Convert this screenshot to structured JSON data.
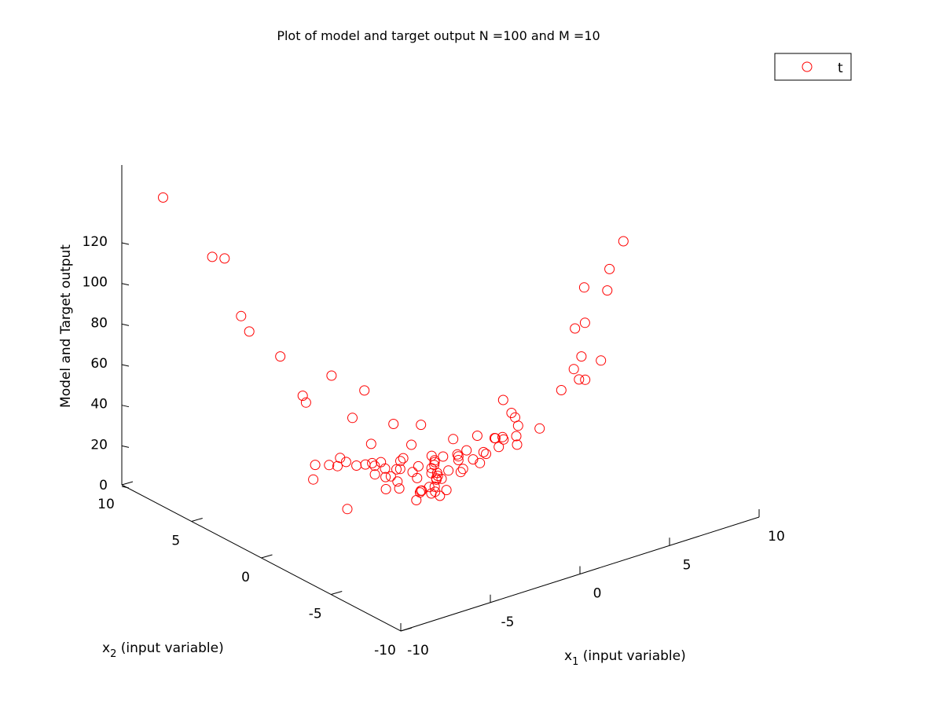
{
  "chart_data": {
    "type": "scatter",
    "title": "Plot of model and target output N =100 and M =10",
    "x1_label": {
      "main": "x",
      "sub": "1",
      "rest": " (input variable)"
    },
    "x2_label": {
      "main": "x",
      "sub": "2",
      "rest": " (input variable)"
    },
    "zlabel": "Model and Target output",
    "x1_ticks": [
      "-10",
      "-5",
      "0",
      "5",
      "10"
    ],
    "x2_ticks": [
      "-10",
      "-5",
      "0",
      "5",
      "10"
    ],
    "z_ticks": [
      "0",
      "20",
      "40",
      "60",
      "80",
      "100",
      "120"
    ],
    "x1_range": [
      -10,
      10
    ],
    "x2_range": [
      -10,
      10
    ],
    "z_range": [
      0,
      130
    ],
    "legend": {
      "entries": [
        "t"
      ],
      "position": "top-right",
      "marker": "circle"
    },
    "marker_color": "#ff0000",
    "grid": false,
    "series": [
      {
        "name": "t",
        "points": [
          [
            -8.4,
            9.1,
            140.3
          ],
          [
            -6.6,
            7.0,
            112.8
          ],
          [
            -6.9,
            7.5,
            112.6
          ],
          [
            -6.7,
            5.1,
            83.9
          ],
          [
            -6.3,
            6.2,
            86.4
          ],
          [
            -5.2,
            4.8,
            68.5
          ],
          [
            -5.9,
            2.3,
            60.1
          ],
          [
            -3.2,
            3.7,
            57.4
          ],
          [
            -3.4,
            -1.0,
            51.1
          ],
          [
            -4.7,
            3.6,
            48.7
          ],
          [
            -2.3,
            2.5,
            51.9
          ],
          [
            -3.9,
            1.3,
            47.2
          ],
          [
            -2.1,
            -1.3,
            48.1
          ],
          [
            -3.4,
            0.6,
            35.5
          ],
          [
            -4.3,
            0.5,
            27.7
          ],
          [
            -5.7,
            1.8,
            20.1
          ],
          [
            -5.2,
            2.3,
            24.1
          ],
          [
            -4.2,
            1.8,
            26.5
          ],
          [
            -5.9,
            -0.9,
            15.8
          ],
          [
            -2.6,
            -2.7,
            30.7
          ],
          [
            0.4,
            -0.4,
            30.8
          ],
          [
            0.1,
            -2.7,
            28.1
          ],
          [
            -1.0,
            0.8,
            27.6
          ],
          [
            -2.4,
            2.3,
            16.4
          ],
          [
            -2.8,
            1.1,
            17.0
          ],
          [
            -2.3,
            0.6,
            16.4
          ],
          [
            -3.2,
            -0.2,
            15.5
          ],
          [
            -2.3,
            0.0,
            12.6
          ],
          [
            -1.7,
            0.9,
            11.1
          ],
          [
            -2.6,
            -2.0,
            19.6
          ],
          [
            -1.9,
            -2.4,
            16.5
          ],
          [
            -1.8,
            -1.9,
            18.9
          ],
          [
            -0.6,
            -1.2,
            11.4
          ],
          [
            -1.3,
            -0.2,
            8.6
          ],
          [
            -2.1,
            -1.9,
            19.6
          ],
          [
            -1.6,
            -1.4,
            13.2
          ],
          [
            -1.0,
            -0.9,
            10.6
          ],
          [
            0.3,
            0.8,
            15.4
          ],
          [
            -0.1,
            -0.7,
            17.8
          ],
          [
            -0.3,
            -2.0,
            23.8
          ],
          [
            1.0,
            -1.8,
            27.7
          ],
          [
            1.3,
            -0.2,
            22.0
          ],
          [
            2.4,
            -0.8,
            27.1
          ],
          [
            1.3,
            -1.6,
            25.3
          ],
          [
            1.0,
            1.1,
            15.1
          ],
          [
            1.0,
            0.0,
            19.2
          ],
          [
            -0.4,
            -0.6,
            14.2
          ],
          [
            -0.1,
            0.1,
            13.7
          ],
          [
            0.3,
            0.8,
            16.3
          ],
          [
            -0.6,
            2.1,
            13.8
          ],
          [
            -1.3,
            2.6,
            13.4
          ],
          [
            -1.9,
            1.5,
            11.7
          ],
          [
            -1.1,
            0.0,
            8.1
          ],
          [
            -0.7,
            1.1,
            12.2
          ],
          [
            -1.5,
            -0.2,
            5.3
          ],
          [
            -0.6,
            0.9,
            9.7
          ],
          [
            -0.3,
            -0.2,
            13.9
          ],
          [
            -0.3,
            1.2,
            13.6
          ],
          [
            0.0,
            0.3,
            10.1
          ],
          [
            0.2,
            0.9,
            12.4
          ],
          [
            0.4,
            0.8,
            6.5
          ],
          [
            0.9,
            1.6,
            9.4
          ],
          [
            0.6,
            1.4,
            15.5
          ],
          [
            1.9,
            0.1,
            14.8
          ],
          [
            1.6,
            0.6,
            7.6
          ],
          [
            2.4,
            1.8,
            6.9
          ],
          [
            1.8,
            1.1,
            13.9
          ],
          [
            3.6,
            0.1,
            19.8
          ],
          [
            2.6,
            0.7,
            22.3
          ],
          [
            3.1,
            -0.2,
            18.6
          ],
          [
            3.3,
            0.3,
            20.5
          ],
          [
            3.7,
            0.3,
            20.0
          ],
          [
            4.0,
            -0.3,
            21.8
          ],
          [
            4.2,
            -0.1,
            16.3
          ],
          [
            5.1,
            1.2,
            22.5
          ],
          [
            5.6,
            2.7,
            24.3
          ],
          [
            5.3,
            -0.3,
            21.9
          ],
          [
            4.9,
            1.2,
            25.3
          ],
          [
            4.8,
            0.6,
            21.4
          ],
          [
            6.9,
            -0.7,
            48.1
          ],
          [
            7.4,
            -0.6,
            52.6
          ],
          [
            7.9,
            0.5,
            61.0
          ],
          [
            8.3,
            0.3,
            63.4
          ],
          [
            8.8,
            1.0,
            76.9
          ],
          [
            9.0,
            -0.4,
            79.9
          ],
          [
            9.2,
            -0.3,
            89.5
          ],
          [
            9.9,
            -0.4,
            101.6
          ],
          [
            7.5,
            -0.3,
            39.9
          ],
          [
            8.1,
            -1.1,
            50.4
          ],
          [
            6.2,
            -0.7,
            39.7
          ],
          [
            6.6,
            -1.9,
            48.0
          ],
          [
            -0.3,
            2.5,
            7.6
          ],
          [
            -1.4,
            3.1,
            11.4
          ],
          [
            -2.0,
            4.2,
            9.7
          ],
          [
            -3.1,
            3.4,
            13.6
          ],
          [
            -0.9,
            2.0,
            10.9
          ],
          [
            -0.6,
            3.2,
            6.1
          ],
          [
            0.1,
            2.8,
            10.7
          ],
          [
            -1.1,
            3.3,
            8.5
          ],
          [
            -3.8,
            3.1,
            17.2
          ]
        ]
      }
    ]
  }
}
